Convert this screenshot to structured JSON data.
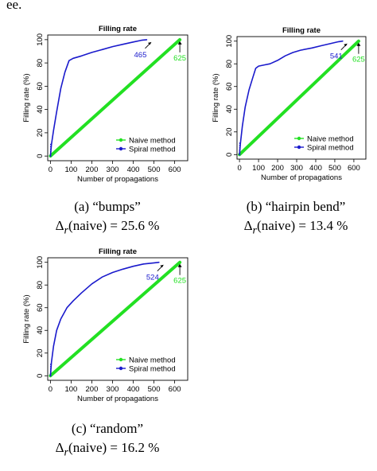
{
  "fragment_text": "ee.",
  "panels": [
    {
      "id": "a",
      "caption": "(a) “bumps”",
      "delta_symbol": "Δ",
      "delta_sub": "r",
      "delta_rest": "(naive) = 25.6 %",
      "chart_data": {
        "type": "line",
        "title": "Filling rate",
        "xlabel": "Number of propagations",
        "ylabel": "Filling rate (%)",
        "xlim": [
          0,
          650
        ],
        "ylim": [
          0,
          100
        ],
        "xticks": [
          0,
          100,
          200,
          300,
          400,
          500,
          600
        ],
        "yticks": [
          0,
          20,
          40,
          60,
          80,
          100
        ],
        "grid": false,
        "legend_position": "bottom-right",
        "series": [
          {
            "name": "Naive method",
            "color": "#22e022",
            "x": [
              0,
              625
            ],
            "y": [
              0,
              100
            ]
          },
          {
            "name": "Spiral method",
            "color": "#1a1acc",
            "x": [
              0,
              5,
              15,
              30,
              50,
              70,
              90,
              110,
              150,
              200,
              250,
              300,
              350,
              400,
              440,
              465
            ],
            "y": [
              0,
              10,
              22,
              38,
              58,
              72,
              82,
              84,
              86,
              89,
              91.5,
              94,
              96,
              98,
              99.5,
              100
            ]
          }
        ],
        "annotations": [
          {
            "text": "465",
            "x": 465,
            "series": "Spiral method"
          },
          {
            "text": "625",
            "x": 625,
            "series": "Naive method"
          }
        ]
      }
    },
    {
      "id": "b",
      "caption": "(b) “hairpin bend”",
      "delta_symbol": "Δ",
      "delta_sub": "r",
      "delta_rest": "(naive) = 13.4 %",
      "chart_data": {
        "type": "line",
        "title": "Filling rate",
        "xlabel": "Number of propagations",
        "ylabel": "Filling rate (%)",
        "xlim": [
          0,
          650
        ],
        "ylim": [
          0,
          100
        ],
        "xticks": [
          0,
          100,
          200,
          300,
          400,
          500,
          600
        ],
        "yticks": [
          0,
          20,
          40,
          60,
          80,
          100
        ],
        "grid": false,
        "legend_position": "bottom-right",
        "series": [
          {
            "name": "Naive method",
            "color": "#22e022",
            "x": [
              0,
              625
            ],
            "y": [
              0,
              100
            ]
          },
          {
            "name": "Spiral method",
            "color": "#1a1acc",
            "x": [
              0,
              5,
              15,
              30,
              50,
              70,
              85,
              100,
              130,
              160,
              200,
              240,
              280,
              320,
              380,
              430,
              480,
              520,
              541
            ],
            "y": [
              0,
              10,
              25,
              42,
              57,
              68,
              76,
              78,
              79,
              80,
              83,
              87,
              90,
              92,
              94,
              96,
              98,
              99.5,
              100
            ]
          }
        ],
        "annotations": [
          {
            "text": "541",
            "x": 541,
            "series": "Spiral method"
          },
          {
            "text": "625",
            "x": 625,
            "series": "Naive method"
          }
        ]
      }
    },
    {
      "id": "c",
      "caption": "(c) “random”",
      "delta_symbol": "Δ",
      "delta_sub": "r",
      "delta_rest": "(naive) = 16.2 %",
      "chart_data": {
        "type": "line",
        "title": "Filling rate",
        "xlabel": "Number of propagations",
        "ylabel": "Filling rate (%)",
        "xlim": [
          0,
          650
        ],
        "ylim": [
          0,
          100
        ],
        "xticks": [
          0,
          100,
          200,
          300,
          400,
          500,
          600
        ],
        "yticks": [
          0,
          20,
          40,
          60,
          80,
          100
        ],
        "grid": false,
        "legend_position": "bottom-right",
        "series": [
          {
            "name": "Naive method",
            "color": "#22e022",
            "x": [
              0,
              625
            ],
            "y": [
              0,
              100
            ]
          },
          {
            "name": "Spiral method",
            "color": "#1a1acc",
            "x": [
              0,
              5,
              15,
              30,
              50,
              80,
              110,
              150,
              200,
              250,
              300,
              350,
              400,
              450,
              500,
              524
            ],
            "y": [
              0,
              12,
              26,
              40,
              50,
              60,
              66,
              73,
              81,
              87,
              91,
              94,
              96.5,
              98.5,
              99.5,
              100
            ]
          }
        ],
        "annotations": [
          {
            "text": "524",
            "x": 524,
            "series": "Spiral method"
          },
          {
            "text": "625",
            "x": 625,
            "series": "Naive method"
          }
        ]
      }
    }
  ]
}
